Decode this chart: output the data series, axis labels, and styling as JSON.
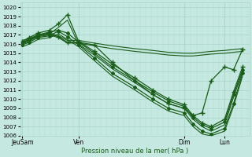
{
  "xlabel": "Pression niveau de la mer( hPa )",
  "bg_color": "#c5e8e0",
  "grid_color": "#a8d4cc",
  "line_color": "#1a5c1a",
  "ylim": [
    1006,
    1020.5
  ],
  "yticks": [
    1006,
    1007,
    1008,
    1009,
    1010,
    1011,
    1012,
    1013,
    1014,
    1015,
    1016,
    1017,
    1018,
    1019,
    1020
  ],
  "xtick_labels": [
    "JeuSam",
    "Ven",
    "",
    "Dim",
    "Lun"
  ],
  "xtick_positions": [
    0.0,
    0.25,
    0.5,
    0.72,
    0.9
  ],
  "vline_positions": [
    0.0,
    0.25,
    0.72,
    0.9
  ],
  "lines": [
    {
      "x": [
        0.0,
        0.03,
        0.07,
        0.12,
        0.16,
        0.2,
        0.25,
        0.32,
        0.4,
        0.5,
        0.58,
        0.65,
        0.72,
        0.76,
        0.8,
        0.84,
        0.9,
        0.94,
        0.98
      ],
      "y": [
        1016.2,
        1016.5,
        1017.0,
        1017.3,
        1017.5,
        1017.2,
        1016.2,
        1015.0,
        1013.5,
        1012.0,
        1010.8,
        1009.8,
        1009.2,
        1008.0,
        1007.2,
        1006.8,
        1007.5,
        1010.5,
        1013.2
      ],
      "marker": "D",
      "ms": 2.0,
      "lw": 0.9
    },
    {
      "x": [
        0.0,
        0.03,
        0.07,
        0.12,
        0.16,
        0.2,
        0.25,
        0.32,
        0.4,
        0.5,
        0.58,
        0.65,
        0.72,
        0.76,
        0.8,
        0.84,
        0.9,
        0.94,
        0.98
      ],
      "y": [
        1016.3,
        1016.7,
        1017.2,
        1017.5,
        1018.2,
        1019.2,
        1016.3,
        1015.2,
        1013.8,
        1012.3,
        1011.0,
        1010.0,
        1009.4,
        1008.2,
        1007.4,
        1007.0,
        1007.8,
        1010.8,
        1013.5
      ],
      "marker": "+",
      "ms": 4.0,
      "lw": 0.9
    },
    {
      "x": [
        0.0,
        0.03,
        0.07,
        0.12,
        0.16,
        0.2,
        0.25,
        0.32,
        0.4,
        0.5,
        0.58,
        0.65,
        0.72,
        0.76,
        0.8,
        0.84,
        0.9,
        0.94,
        0.98
      ],
      "y": [
        1016.0,
        1016.3,
        1016.9,
        1017.1,
        1017.8,
        1018.6,
        1016.0,
        1014.8,
        1013.3,
        1011.8,
        1010.5,
        1009.5,
        1009.0,
        1007.8,
        1007.0,
        1006.5,
        1007.2,
        1010.2,
        1013.0
      ],
      "marker": null,
      "ms": 0,
      "lw": 0.8
    },
    {
      "x": [
        0.0,
        0.03,
        0.07,
        0.12,
        0.16,
        0.2,
        0.25,
        0.32,
        0.4,
        0.5,
        0.58,
        0.65,
        0.72,
        0.76,
        0.8,
        0.84,
        0.9,
        0.94,
        0.98
      ],
      "y": [
        1015.9,
        1016.2,
        1016.7,
        1016.9,
        1017.4,
        1016.8,
        1015.9,
        1014.5,
        1012.8,
        1011.3,
        1010.0,
        1009.0,
        1008.5,
        1007.3,
        1006.5,
        1006.2,
        1006.8,
        1009.5,
        1012.8
      ],
      "marker": "D",
      "ms": 2.0,
      "lw": 0.9
    },
    {
      "x": [
        0.0,
        0.03,
        0.07,
        0.12,
        0.16,
        0.2,
        0.25,
        0.32,
        0.4,
        0.5,
        0.58,
        0.65,
        0.72,
        0.76,
        0.8,
        0.84,
        0.9,
        0.94,
        0.98
      ],
      "y": [
        1015.7,
        1016.0,
        1016.5,
        1016.7,
        1017.1,
        1016.5,
        1015.7,
        1014.2,
        1012.5,
        1011.0,
        1009.7,
        1008.7,
        1008.2,
        1007.0,
        1006.2,
        1006.0,
        1006.5,
        1009.2,
        1012.5
      ],
      "marker": null,
      "ms": 0,
      "lw": 0.8
    },
    {
      "x": [
        0.0,
        0.03,
        0.07,
        0.12,
        0.16,
        0.2,
        0.25,
        0.32,
        0.4,
        0.5,
        0.58,
        0.65,
        0.72,
        0.76,
        0.8,
        0.84,
        0.9,
        0.94,
        0.98
      ],
      "y": [
        1016.4,
        1016.6,
        1017.0,
        1017.2,
        1016.9,
        1016.4,
        1016.4,
        1016.1,
        1015.8,
        1015.5,
        1015.3,
        1015.1,
        1015.0,
        1015.0,
        1015.1,
        1015.2,
        1015.3,
        1015.4,
        1015.5
      ],
      "marker": null,
      "ms": 0,
      "lw": 0.8
    },
    {
      "x": [
        0.0,
        0.03,
        0.07,
        0.12,
        0.16,
        0.2,
        0.25,
        0.32,
        0.4,
        0.5,
        0.58,
        0.65,
        0.72,
        0.76,
        0.8,
        0.84,
        0.9,
        0.94,
        0.98
      ],
      "y": [
        1016.1,
        1016.4,
        1016.8,
        1017.0,
        1016.7,
        1016.1,
        1016.1,
        1015.8,
        1015.5,
        1015.2,
        1015.0,
        1014.8,
        1014.7,
        1014.7,
        1014.8,
        1014.9,
        1015.0,
        1015.1,
        1015.2
      ],
      "marker": null,
      "ms": 0,
      "lw": 0.8
    },
    {
      "x": [
        0.0,
        0.03,
        0.07,
        0.12,
        0.16,
        0.2,
        0.25,
        0.32,
        0.4,
        0.5,
        0.58,
        0.65,
        0.72,
        0.76,
        0.8,
        0.84,
        0.9,
        0.94,
        0.98
      ],
      "y": [
        1016.2,
        1016.5,
        1016.9,
        1017.1,
        1016.8,
        1016.2,
        1016.2,
        1015.9,
        1014.0,
        1012.0,
        1010.5,
        1009.5,
        1009.0,
        1008.2,
        1008.5,
        1012.0,
        1013.5,
        1013.2,
        1015.4
      ],
      "marker": "+",
      "ms": 4.0,
      "lw": 0.9
    }
  ]
}
